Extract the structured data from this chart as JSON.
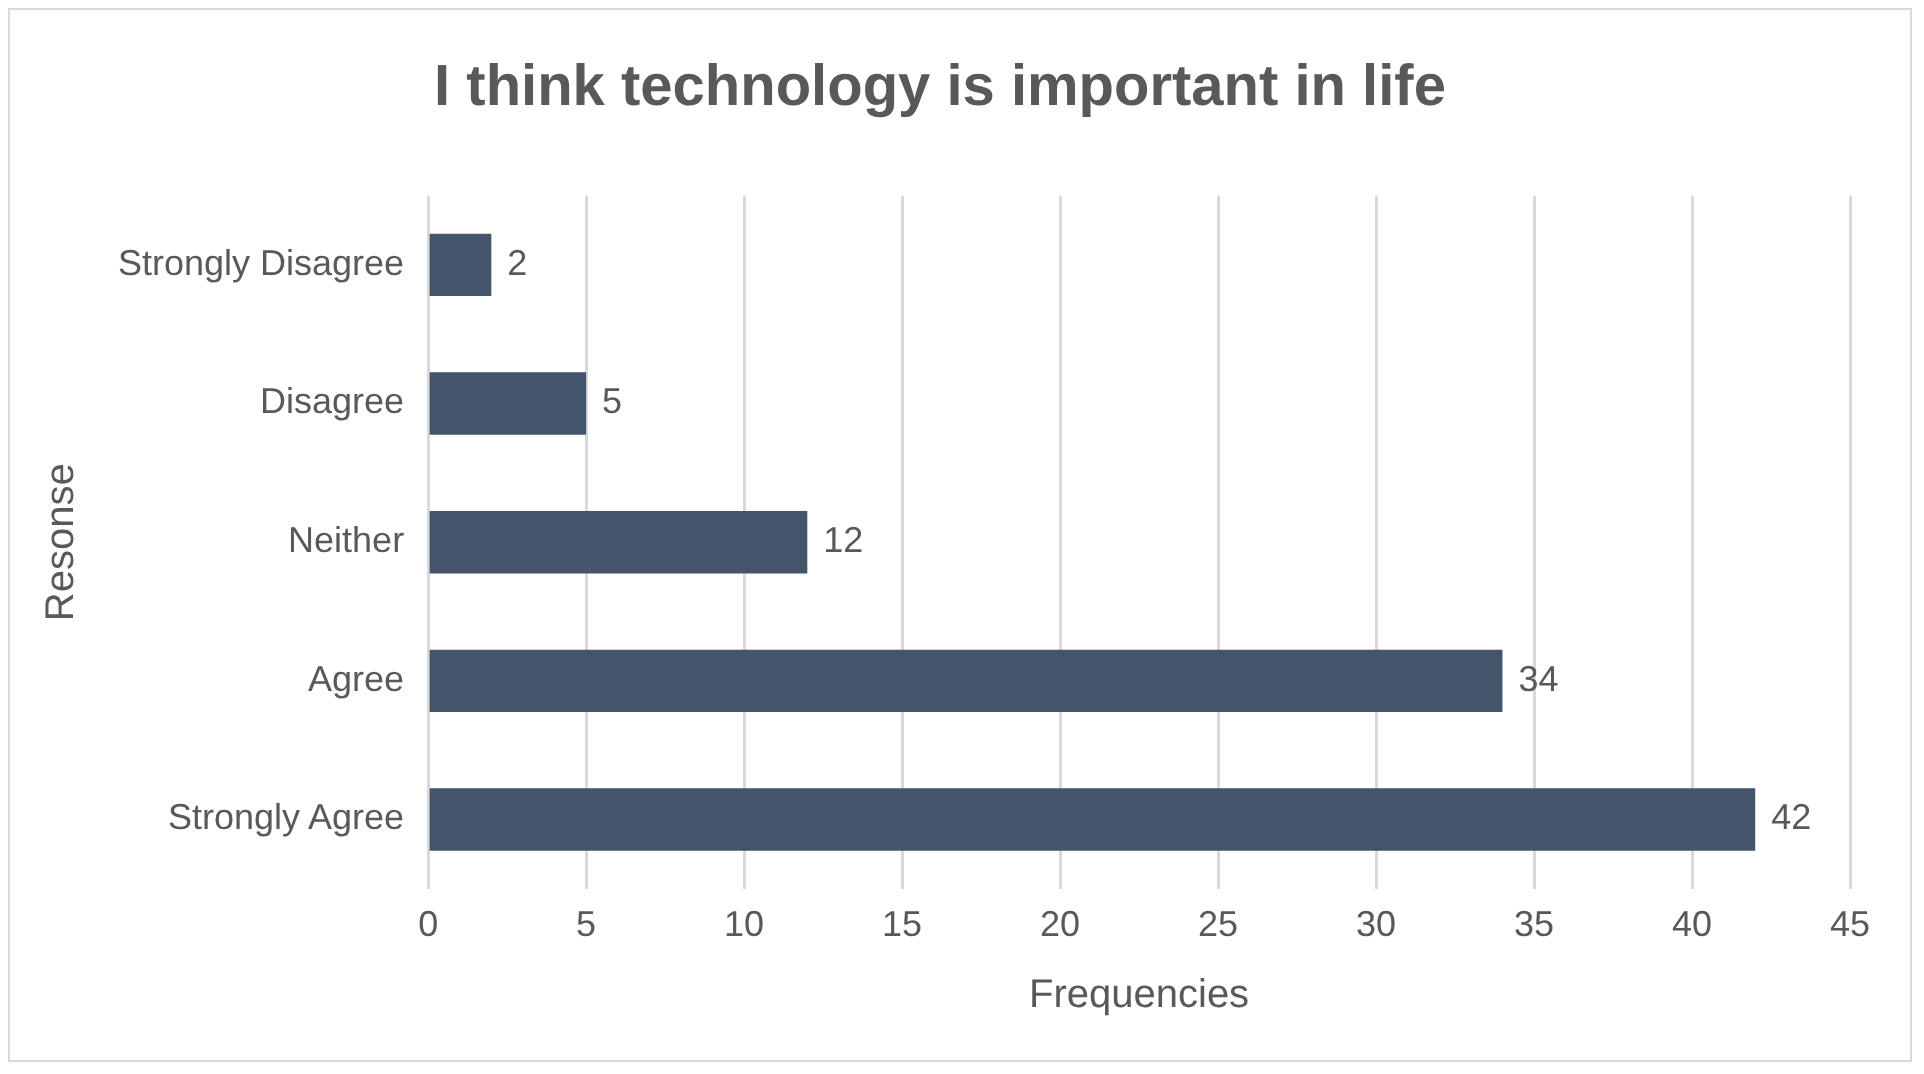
{
  "chart_data": {
    "type": "bar",
    "orientation": "horizontal",
    "title": "I think technology is important in life",
    "xlabel": "Frequencies",
    "ylabel": "Resonse",
    "categories": [
      "Strongly Disagree",
      "Disagree",
      "Neither",
      "Agree",
      "Strongly Agree"
    ],
    "values": [
      2,
      5,
      12,
      34,
      42
    ],
    "color": "#44546a",
    "xlim": [
      0,
      45
    ],
    "xticks": [
      0,
      5,
      10,
      15,
      20,
      25,
      30,
      35,
      40,
      45
    ],
    "grid": "x",
    "data_labels": true,
    "legend": false
  }
}
